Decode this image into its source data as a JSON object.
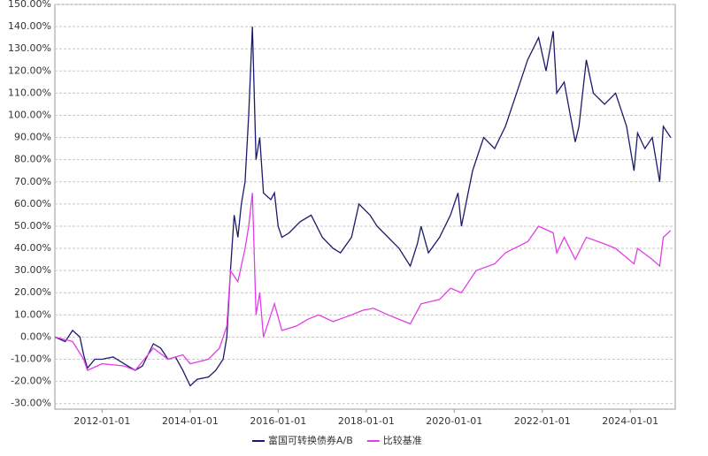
{
  "chart_data": {
    "type": "line",
    "xlim": [
      "2010-12-05",
      "2025-01-08"
    ],
    "xticks": [
      "2012-01-01",
      "2014-01-01",
      "2016-01-01",
      "2018-01-01",
      "2020-01-01",
      "2022-01-01",
      "2024-01-01"
    ],
    "ylim": [
      -32.5,
      150
    ],
    "yticks": [
      {
        "value": 150,
        "label": "150.00%"
      },
      {
        "value": 140,
        "label": "140.00%"
      },
      {
        "value": 130,
        "label": "130.00%"
      },
      {
        "value": 120,
        "label": "120.00%"
      },
      {
        "value": 110,
        "label": "110.00%"
      },
      {
        "value": 100,
        "label": "100.00%"
      },
      {
        "value": 90,
        "label": "90.00%"
      },
      {
        "value": 80,
        "label": "80.00%"
      },
      {
        "value": 70,
        "label": "70.00%"
      },
      {
        "value": 60,
        "label": "60.00%"
      },
      {
        "value": 50,
        "label": "50.00%"
      },
      {
        "value": 40,
        "label": "40.00%"
      },
      {
        "value": 30,
        "label": "30.00%"
      },
      {
        "value": 20,
        "label": "20.00%"
      },
      {
        "value": 10,
        "label": "10.00%"
      },
      {
        "value": 0,
        "label": "0.00%"
      },
      {
        "value": -10,
        "label": "-10.00%"
      },
      {
        "value": -20,
        "label": "-20.00%"
      },
      {
        "value": -30,
        "label": "-30.00%"
      }
    ],
    "grid": true,
    "legend": "bottom",
    "series": [
      {
        "name": "富国可转换债券A/B",
        "color": "#1b1a6b",
        "x": [
          "2010-12-06",
          "2011-03-01",
          "2011-05-01",
          "2011-07-01",
          "2011-08-01",
          "2011-09-01",
          "2011-11-01",
          "2012-01-01",
          "2012-04-01",
          "2012-07-01",
          "2012-10-01",
          "2012-12-01",
          "2013-03-01",
          "2013-05-01",
          "2013-07-01",
          "2013-09-01",
          "2013-11-01",
          "2014-01-01",
          "2014-03-01",
          "2014-06-01",
          "2014-08-01",
          "2014-10-01",
          "2014-11-01",
          "2014-12-01",
          "2015-01-01",
          "2015-02-01",
          "2015-03-01",
          "2015-04-01",
          "2015-05-01",
          "2015-06-01",
          "2015-07-01",
          "2015-08-01",
          "2015-09-01",
          "2015-11-01",
          "2015-12-01",
          "2016-01-01",
          "2016-02-01",
          "2016-04-01",
          "2016-07-01",
          "2016-10-01",
          "2017-01-01",
          "2017-04-01",
          "2017-06-01",
          "2017-09-01",
          "2017-11-01",
          "2018-02-01",
          "2018-04-01",
          "2018-07-01",
          "2018-10-01",
          "2019-01-01",
          "2019-03-01",
          "2019-04-01",
          "2019-06-01",
          "2019-09-01",
          "2019-12-01",
          "2020-02-01",
          "2020-03-01",
          "2020-06-01",
          "2020-09-01",
          "2020-12-01",
          "2021-03-01",
          "2021-06-01",
          "2021-09-01",
          "2021-12-01",
          "2022-02-01",
          "2022-04-01",
          "2022-05-01",
          "2022-07-01",
          "2022-10-01",
          "2022-11-01",
          "2023-01-01",
          "2023-03-01",
          "2023-06-01",
          "2023-09-01",
          "2023-12-01",
          "2024-02-01",
          "2024-03-01",
          "2024-05-01",
          "2024-07-01",
          "2024-09-01",
          "2024-10-01",
          "2024-12-01"
        ],
        "values": [
          0,
          -2,
          3,
          0,
          -8,
          -14,
          -10,
          -10,
          -9,
          -12,
          -15,
          -13,
          -3,
          -5,
          -10,
          -9,
          -15,
          -22,
          -19,
          -18,
          -15,
          -10,
          0,
          30,
          55,
          45,
          60,
          70,
          100,
          140,
          80,
          90,
          65,
          62,
          65,
          50,
          45,
          47,
          52,
          55,
          45,
          40,
          38,
          45,
          60,
          55,
          50,
          45,
          40,
          32,
          42,
          50,
          38,
          45,
          55,
          65,
          50,
          75,
          90,
          85,
          95,
          110,
          125,
          135,
          120,
          138,
          110,
          115,
          88,
          95,
          125,
          110,
          105,
          110,
          95,
          75,
          92,
          85,
          90,
          70,
          95,
          90
        ]
      },
      {
        "name": "比较基准",
        "color": "#e03ee6",
        "x": [
          "2010-12-06",
          "2011-05-01",
          "2011-08-01",
          "2011-09-01",
          "2012-01-01",
          "2012-07-01",
          "2012-10-01",
          "2013-03-01",
          "2013-07-01",
          "2013-11-01",
          "2014-01-01",
          "2014-06-01",
          "2014-09-01",
          "2014-11-01",
          "2014-12-01",
          "2015-02-01",
          "2015-04-01",
          "2015-05-01",
          "2015-06-01",
          "2015-07-01",
          "2015-08-01",
          "2015-09-01",
          "2015-12-01",
          "2016-02-01",
          "2016-06-01",
          "2016-09-01",
          "2016-12-01",
          "2017-04-01",
          "2017-09-01",
          "2017-12-01",
          "2018-03-01",
          "2018-07-01",
          "2018-10-01",
          "2019-01-01",
          "2019-04-01",
          "2019-09-01",
          "2019-12-01",
          "2020-03-01",
          "2020-07-01",
          "2020-12-01",
          "2021-03-01",
          "2021-09-01",
          "2021-12-01",
          "2022-04-01",
          "2022-05-01",
          "2022-07-01",
          "2022-10-01",
          "2023-01-01",
          "2023-06-01",
          "2023-09-01",
          "2024-02-01",
          "2024-03-01",
          "2024-07-01",
          "2024-09-01",
          "2024-10-01",
          "2024-12-01"
        ],
        "values": [
          0,
          -2,
          -10,
          -15,
          -12,
          -13,
          -15,
          -5,
          -10,
          -8,
          -12,
          -10,
          -5,
          5,
          30,
          25,
          40,
          50,
          65,
          10,
          20,
          0,
          15,
          3,
          5,
          8,
          10,
          7,
          10,
          12,
          13,
          10,
          8,
          6,
          15,
          17,
          22,
          20,
          30,
          33,
          38,
          43,
          50,
          47,
          38,
          45,
          35,
          45,
          42,
          40,
          33,
          40,
          35,
          32,
          45,
          48
        ]
      }
    ]
  }
}
